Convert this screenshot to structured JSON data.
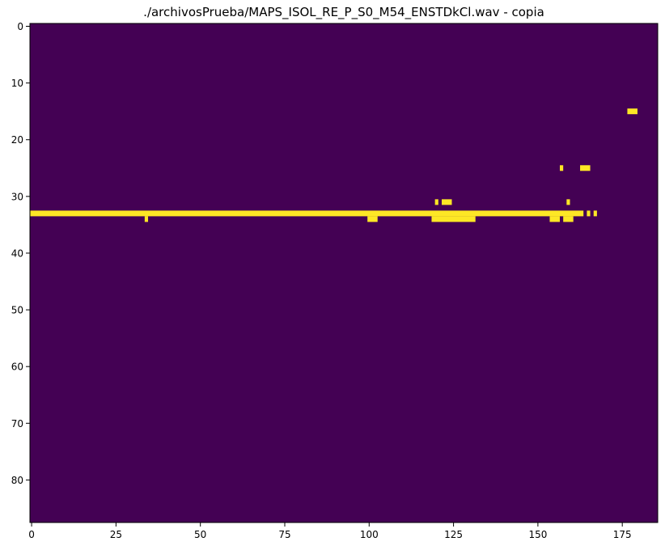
{
  "chart_data": {
    "type": "heatmap",
    "title": "./archivosPrueba/MAPS_ISOL_RE_P_S0_M54_ENSTDkCl.wav - copia",
    "xlabel": "",
    "ylabel": "",
    "xlim": [
      -0.5,
      185.5
    ],
    "ylim": [
      87.5,
      -0.5
    ],
    "x_ticks": [
      0,
      25,
      50,
      75,
      100,
      125,
      150,
      175
    ],
    "y_ticks": [
      0,
      10,
      20,
      30,
      40,
      50,
      60,
      70,
      80
    ],
    "grid": false,
    "colormap": "viridis",
    "background_value": 0,
    "colors": {
      "low": "#440154",
      "high": "#fde725"
    },
    "active_cells": [
      {
        "row": 15,
        "x_start": 177,
        "x_end": 179
      },
      {
        "row": 25,
        "x_start": 157,
        "x_end": 157
      },
      {
        "row": 25,
        "x_start": 163,
        "x_end": 165
      },
      {
        "row": 31,
        "x_start": 120,
        "x_end": 120
      },
      {
        "row": 31,
        "x_start": 122,
        "x_end": 124
      },
      {
        "row": 31,
        "x_start": 159,
        "x_end": 159
      },
      {
        "row": 33,
        "x_start": 0,
        "x_end": 163
      },
      {
        "row": 33,
        "x_start": 165,
        "x_end": 165
      },
      {
        "row": 33,
        "x_start": 167,
        "x_end": 167
      },
      {
        "row": 34,
        "x_start": 34,
        "x_end": 34
      },
      {
        "row": 34,
        "x_start": 100,
        "x_end": 102
      },
      {
        "row": 34,
        "x_start": 119,
        "x_end": 131
      },
      {
        "row": 34,
        "x_start": 154,
        "x_end": 156
      },
      {
        "row": 34,
        "x_start": 158,
        "x_end": 160
      }
    ]
  }
}
